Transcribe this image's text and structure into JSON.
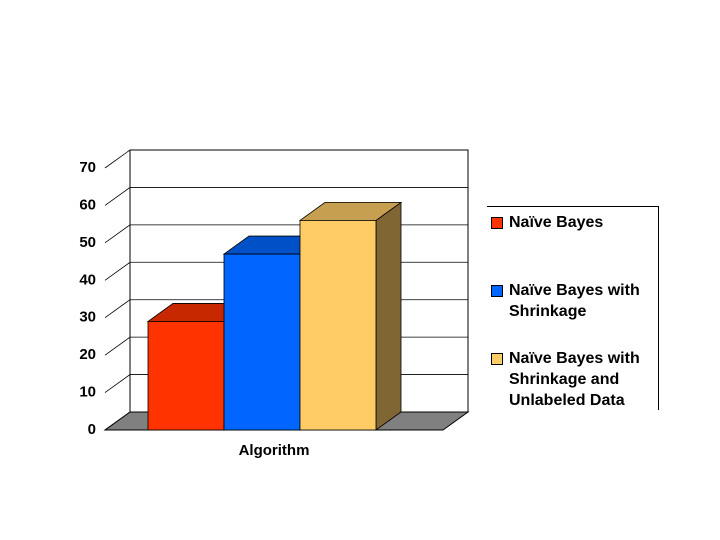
{
  "chart_data": {
    "type": "bar3d",
    "categories": [
      "Algorithm"
    ],
    "series": [
      {
        "name": "Naïve Bayes",
        "color": "#ff3300",
        "values": [
          29
        ]
      },
      {
        "name": "Naïve Bayes with Shrinkage",
        "color": "#0066ff",
        "values": [
          47
        ]
      },
      {
        "name": "Naïve Bayes with Shrinkage and Unlabeled Data",
        "color": "#ffcc66",
        "values": [
          56
        ]
      }
    ],
    "ylim": [
      0,
      70
    ],
    "yticks": [
      0,
      10,
      20,
      30,
      40,
      50,
      60,
      70
    ],
    "grid": true,
    "legend": "right"
  }
}
